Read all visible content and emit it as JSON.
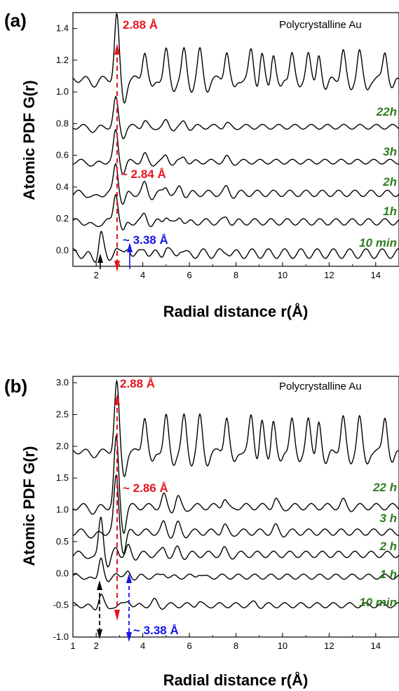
{
  "chart_data": [
    {
      "type": "line",
      "panel_label": "(a)",
      "xlabel": "Radial distance r(Å)",
      "ylabel": "Atomic PDF G(r)",
      "xlim": [
        1,
        15
      ],
      "ylim": [
        -0.1,
        1.5
      ],
      "xticks": [
        2,
        4,
        6,
        8,
        10,
        12,
        14
      ],
      "yticks": [
        0.0,
        0.2,
        0.4,
        0.6,
        0.8,
        1.0,
        1.2,
        1.4
      ],
      "ytick_labels": [
        "0.0",
        "0.2",
        "0.4",
        "0.6",
        "0.8",
        "1.0",
        "1.2",
        "1.4"
      ],
      "grid": false,
      "label_color": "#2e7d1f",
      "reference_label": "Polycrystalline Au",
      "series": [
        {
          "name": "Polycrystalline Au",
          "offset": 1.08,
          "base_amp": 0.02,
          "first_peak": 0.4,
          "osc_amp": 0.18,
          "decay": 0.0,
          "peaks": [
            2.88,
            4.08,
            5.0,
            5.77,
            6.45,
            7.6,
            8.65,
            9.1,
            9.6,
            10.4,
            11.1,
            11.55,
            12.6,
            13.3,
            14.4
          ]
        },
        {
          "name": "22h",
          "offset": 0.78,
          "base_amp": 0.015,
          "first_peak": 0.2,
          "osc_amp": 0.05,
          "decay": 0.15,
          "peaks": [
            2.84,
            4.08,
            5.0,
            5.77,
            7.6
          ]
        },
        {
          "name": "3h",
          "offset": 0.56,
          "base_amp": 0.015,
          "first_peak": 0.22,
          "osc_amp": 0.06,
          "decay": 0.15,
          "peaks": [
            2.84,
            4.08,
            5.0,
            5.77,
            7.6
          ]
        },
        {
          "name": "2h",
          "offset": 0.36,
          "base_amp": 0.02,
          "first_peak": 0.22,
          "osc_amp": 0.08,
          "decay": 0.16,
          "peaks": [
            2.84,
            4.08,
            5.0,
            5.6,
            7.6
          ]
        },
        {
          "name": "1h",
          "offset": 0.18,
          "base_amp": 0.02,
          "first_peak": 0.22,
          "osc_amp": 0.07,
          "decay": 0.16,
          "peaks": [
            2.84,
            4.08,
            5.0,
            5.6,
            7.6
          ]
        },
        {
          "name": "10 min",
          "offset": -0.02,
          "base_amp": 0.03,
          "first_peak": 0.16,
          "osc_amp": 0.06,
          "decay": 0.17,
          "peaks": [
            2.2,
            2.84,
            3.38,
            4.08,
            5.0,
            5.6,
            7.6
          ]
        }
      ],
      "annotations": [
        {
          "text": "2.88 Å",
          "x": 2.88,
          "color": "#e8141e"
        },
        {
          "text": "~ 2.84 Å",
          "x": 2.84,
          "color": "#e8141e"
        },
        {
          "text": "~ 3.38 Å",
          "x": 3.38,
          "color": "#1414e8"
        }
      ]
    },
    {
      "type": "line",
      "panel_label": "(b)",
      "xlabel": "Radial distance r(Å)",
      "ylabel": "Atomic PDF G(r)",
      "xlim": [
        1,
        15
      ],
      "ylim": [
        -1.0,
        3.1
      ],
      "xticks": [
        1,
        2,
        4,
        6,
        8,
        10,
        12,
        14
      ],
      "yticks": [
        -1.0,
        -0.5,
        0.0,
        0.5,
        1.0,
        1.5,
        2.0,
        2.5,
        3.0
      ],
      "ytick_labels": [
        "-1.0",
        "-0.5",
        "0.0",
        "0.5",
        "1.0",
        "1.5",
        "2.0",
        "2.5",
        "3.0"
      ],
      "grid": false,
      "label_color": "#2e7d1f",
      "reference_label": "Polycrystalline Au",
      "series": [
        {
          "name": "Polycrystalline Au",
          "offset": 1.92,
          "base_amp": 0.04,
          "first_peak": 1.08,
          "osc_amp": 0.55,
          "decay": 0.0,
          "peaks": [
            2.88,
            4.08,
            5.0,
            5.77,
            6.45,
            7.6,
            8.65,
            9.1,
            9.6,
            10.4,
            11.1,
            11.55,
            12.6,
            13.3,
            14.4
          ]
        },
        {
          "name": "22 h",
          "offset": 1.05,
          "base_amp": 0.05,
          "first_peak": 1.15,
          "osc_amp": 0.22,
          "decay": 0.09,
          "peaks": [
            2.86,
            4.9,
            5.5,
            7.5,
            9.7,
            12.6
          ]
        },
        {
          "name": "3 h",
          "offset": 0.65,
          "base_amp": 0.05,
          "first_peak": 0.95,
          "osc_amp": 0.18,
          "decay": 0.1,
          "peaks": [
            2.86,
            4.9,
            5.5,
            7.5,
            9.7
          ]
        },
        {
          "name": "2 h",
          "offset": 0.3,
          "base_amp": 0.05,
          "first_peak": 0.65,
          "osc_amp": 0.14,
          "decay": 0.12,
          "peaks": [
            2.2,
            2.86,
            3.38,
            4.9,
            5.5,
            7.5
          ]
        },
        {
          "name": "1 h",
          "offset": -0.05,
          "base_amp": 0.04,
          "first_peak": 0.35,
          "osc_amp": 0.1,
          "decay": 0.14,
          "peaks": [
            2.2,
            2.86,
            3.38,
            4.9,
            6.4
          ]
        },
        {
          "name": "10 min",
          "offset": -0.5,
          "base_amp": 0.04,
          "first_peak": 0.2,
          "osc_amp": 0.1,
          "decay": 0.14,
          "peaks": [
            2.2,
            3.38,
            4.5,
            6.4,
            8.8
          ]
        }
      ],
      "annotations": [
        {
          "text": "2.88 Å",
          "x": 2.88,
          "color": "#e8141e"
        },
        {
          "text": "~ 2.86 Å",
          "x": 2.86,
          "color": "#e8141e"
        },
        {
          "text": "~ 3.38 Å",
          "x": 3.38,
          "color": "#1414e8"
        }
      ]
    }
  ]
}
